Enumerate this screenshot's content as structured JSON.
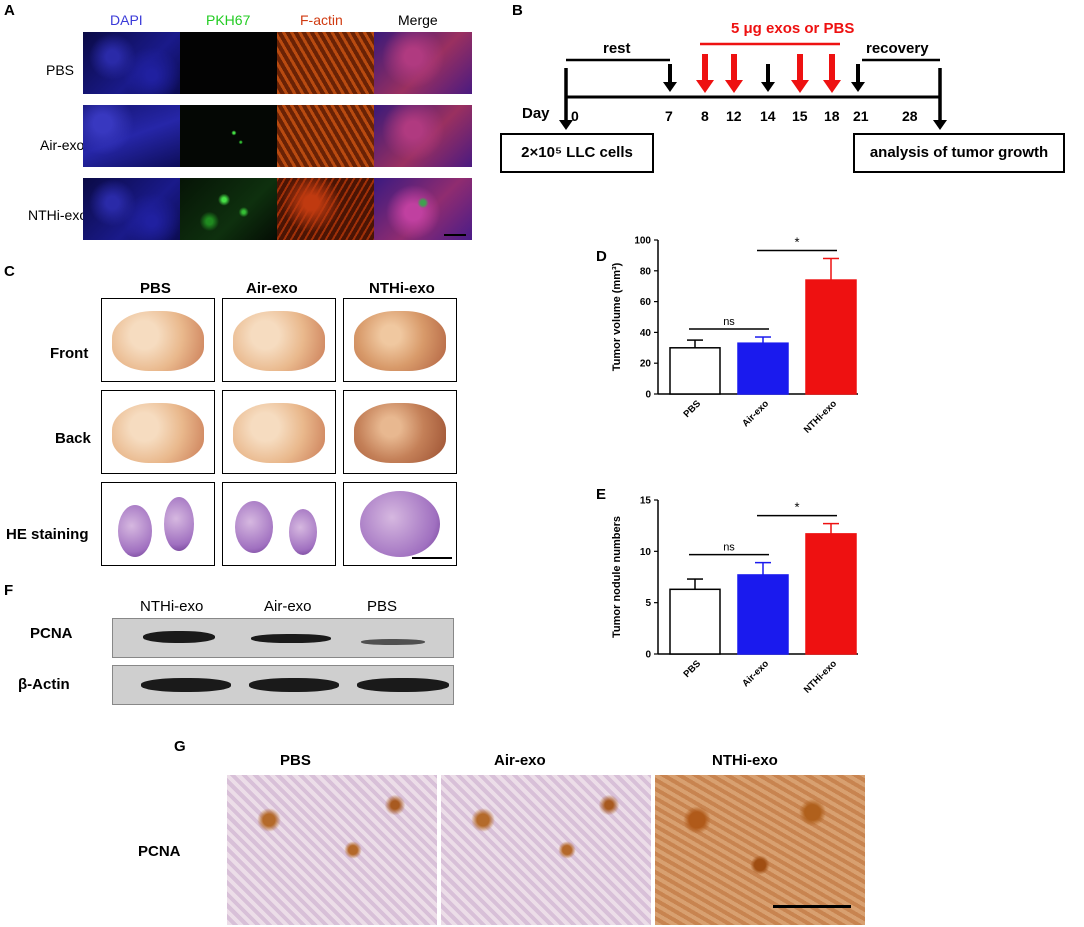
{
  "panel_labels": {
    "a": "A",
    "b": "B",
    "c": "C",
    "d": "D",
    "e": "E",
    "f": "F",
    "g": "G"
  },
  "panel_a": {
    "columns": [
      "DAPI",
      "PKH67",
      "F-actin",
      "Merge"
    ],
    "column_colors": [
      "#3a3ad8",
      "#22cc22",
      "#d03a10",
      "#000000"
    ],
    "rows": [
      "PBS",
      "Air-exo",
      "NTHi-exo"
    ]
  },
  "panel_b": {
    "treatment": "5 μg exos or PBS",
    "rest": "rest",
    "recovery": "recovery",
    "day_label": "Day",
    "days": [
      "0",
      "7",
      "8",
      "12",
      "14",
      "15",
      "18",
      "21",
      "28"
    ],
    "cells_box": "2×10⁵ LLC  cells",
    "analysis_box": "analysis of tumor growth",
    "treatment_color": "#ee1111"
  },
  "panel_c": {
    "columns": [
      "PBS",
      "Air-exo",
      "NTHi-exo"
    ],
    "rows": [
      "Front",
      "Back",
      "HE staining"
    ]
  },
  "chart_data": [
    {
      "panel": "D",
      "type": "bar",
      "categories": [
        "PBS",
        "Air-exo",
        "NTHi-exo"
      ],
      "values": [
        30,
        33,
        74
      ],
      "errors": [
        5,
        4,
        14
      ],
      "colors": [
        "#ffffff",
        "#1a1aee",
        "#ee1111"
      ],
      "ylabel": "Tumor  volume  (mm³)",
      "ylim": [
        0,
        100
      ],
      "yticks": [
        "0",
        "20",
        "40",
        "60",
        "80",
        "100"
      ],
      "significance": [
        {
          "from": 0,
          "to": 1,
          "label": "ns"
        },
        {
          "from": 1,
          "to": 2,
          "label": "*"
        }
      ]
    },
    {
      "panel": "E",
      "type": "bar",
      "categories": [
        "PBS",
        "Air-exo",
        "NTHi-exo"
      ],
      "values": [
        6.3,
        7.7,
        11.7
      ],
      "errors": [
        1.0,
        1.2,
        1.0
      ],
      "colors": [
        "#ffffff",
        "#1a1aee",
        "#ee1111"
      ],
      "ylabel": "Tumor   nodule   numbers",
      "ylim": [
        0,
        15
      ],
      "yticks": [
        "0",
        "5",
        "10",
        "15"
      ],
      "significance": [
        {
          "from": 0,
          "to": 1,
          "label": "ns"
        },
        {
          "from": 1,
          "to": 2,
          "label": "*"
        }
      ]
    }
  ],
  "panel_f": {
    "lanes": [
      "NTHi-exo",
      "Air-exo",
      "PBS"
    ],
    "rows": [
      "PCNA",
      "β-Actin"
    ]
  },
  "panel_g": {
    "columns": [
      "PBS",
      "Air-exo",
      "NTHi-exo"
    ],
    "row": "PCNA"
  }
}
